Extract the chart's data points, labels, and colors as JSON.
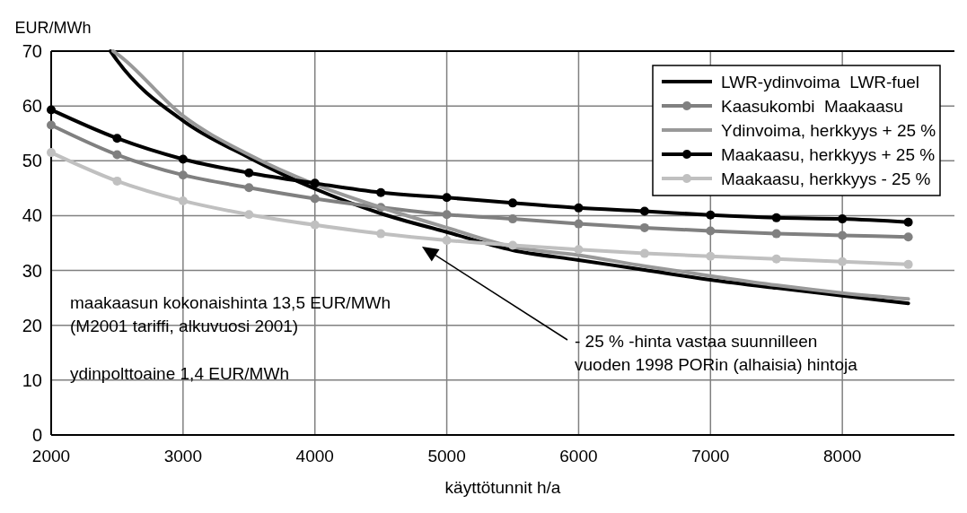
{
  "chart_data": {
    "type": "line",
    "ylabel": "EUR/MWh",
    "xlabel": "käyttötunnit h/a",
    "xlim": [
      2000,
      8850
    ],
    "xticks": [
      2000,
      3000,
      4000,
      5000,
      6000,
      7000,
      8000
    ],
    "ylim": [
      0,
      70
    ],
    "yticks": [
      0,
      10,
      20,
      30,
      40,
      50,
      60,
      70
    ],
    "grid": true,
    "legend": "top right",
    "line_style": "solid",
    "x": [
      2000,
      2500,
      3000,
      3500,
      4000,
      4500,
      5000,
      5500,
      6000,
      6500,
      7000,
      7500,
      8000,
      8500
    ],
    "series": [
      {
        "name": "LWR-ydinvoima  LWR-fuel",
        "color": "#000000",
        "marker": "none",
        "x": [
          2450,
          2500,
          3000,
          3500,
          4000,
          4500,
          5000,
          5500,
          6000,
          6500,
          7000,
          7500,
          8000,
          8500
        ],
        "values": [
          70,
          68.3,
          57.3,
          50.6,
          44.9,
          40.4,
          37.0,
          33.7,
          31.9,
          30.1,
          28.3,
          26.8,
          25.4,
          24.0
        ]
      },
      {
        "name": "Kaasukombi  Maakaasu",
        "color": "#808080",
        "marker": "circle",
        "values": [
          56.5,
          51.1,
          47.4,
          45.1,
          43.1,
          41.5,
          40.2,
          39.4,
          38.5,
          37.8,
          37.2,
          36.7,
          36.4,
          36.1
        ]
      },
      {
        "name": "Ydinvoima, herkkyys + 25 %",
        "color": "#999999",
        "marker": "none",
        "x": [
          2470,
          2500,
          3000,
          3500,
          4000,
          4500,
          5000,
          5500,
          6000,
          6500,
          7000,
          7500,
          8000,
          8500
        ],
        "values": [
          70,
          69.5,
          58.2,
          51.1,
          45.7,
          41.5,
          37.8,
          34.3,
          32.8,
          30.8,
          29.0,
          27.3,
          25.9,
          24.8
        ]
      },
      {
        "name": "Maakaasu, herkkyys + 25 %",
        "color": "#000000",
        "marker": "circle",
        "values": [
          59.3,
          54.1,
          50.3,
          47.8,
          45.9,
          44.2,
          43.3,
          42.3,
          41.4,
          40.8,
          40.1,
          39.6,
          39.4,
          38.8
        ]
      },
      {
        "name": "Maakaasu, herkkyys - 25 %",
        "color": "#c0c0c0",
        "marker": "circle",
        "values": [
          51.5,
          46.3,
          42.7,
          40.2,
          38.3,
          36.7,
          35.5,
          34.6,
          33.8,
          33.1,
          32.6,
          32.1,
          31.6,
          31.1
        ]
      }
    ],
    "annotations": [
      "maakaasun kokonaishinta 13,5 EUR/MWh\n(M2001 tariffi, alkuvuosi 2001)",
      "ydinpolttoaine 1,4 EUR/MWh",
      "- 25 % -hinta vastaa suunnilleen\nvuoden 1998 PORin (alhaisia) hintoja"
    ]
  }
}
